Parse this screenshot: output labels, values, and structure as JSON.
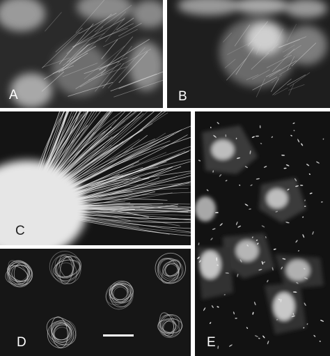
{
  "panels": [
    {
      "label": "A"
    },
    {
      "label": "B"
    },
    {
      "label": "C"
    },
    {
      "label": "D"
    },
    {
      "label": "E"
    }
  ]
}
